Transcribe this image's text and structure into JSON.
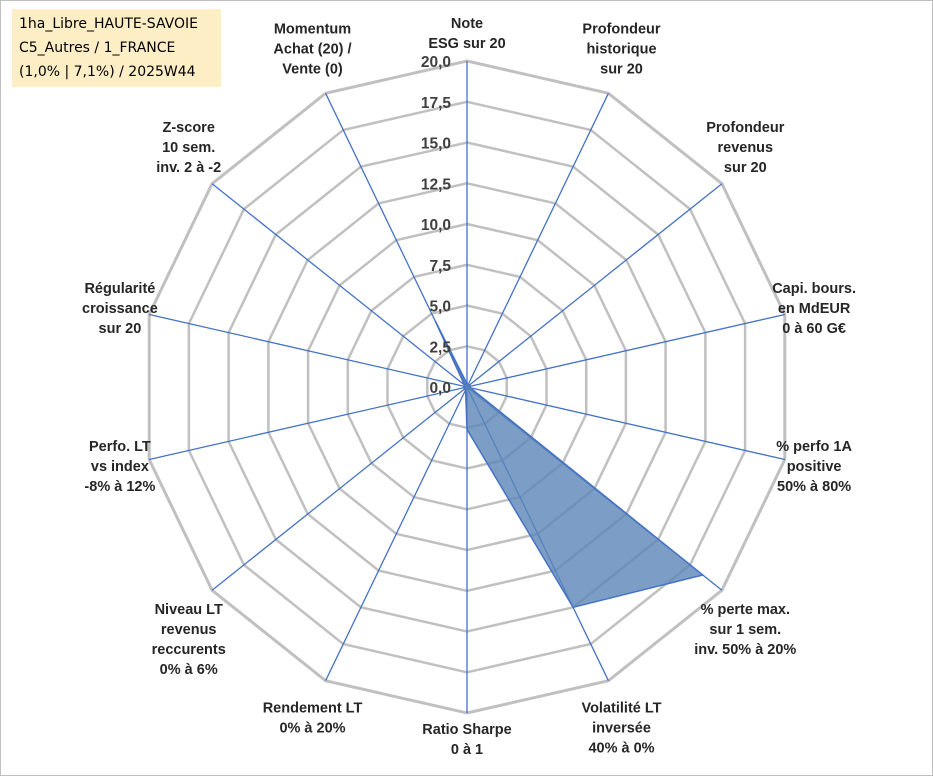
{
  "info_box": {
    "line1": "1ha_Libre_HAUTE-SAVOIE",
    "line2": "C5_Autres / 1_FRANCE",
    "line3": "(1,0% | 7,1%) / 2025W44"
  },
  "colors": {
    "fill": "#5b86b8",
    "stroke": "#4472c4",
    "grid": "#c0c0c0",
    "spoke": "#4472c4",
    "info_bg": "#fdeec6"
  },
  "chart_data": {
    "type": "radar",
    "range": [
      0,
      20
    ],
    "step": 2.5,
    "tick_labels": [
      "0,0",
      "2,5",
      "5,0",
      "7,5",
      "10,0",
      "12,5",
      "15,0",
      "17,5",
      "20,0"
    ],
    "axes": [
      [
        "Note",
        "ESG sur 20"
      ],
      [
        "Profondeur",
        "historique",
        "sur 20"
      ],
      [
        "Profondeur",
        "revenus",
        "sur 20"
      ],
      [
        "Capi. bours.",
        "en MdEUR",
        "0 à 60 G€"
      ],
      [
        "% perfo 1A",
        "positive",
        "50% à 80%"
      ],
      [
        "% perte max.",
        "sur 1 sem.",
        "inv. 50% à 20%"
      ],
      [
        "Volatilité LT",
        "inversée",
        "40% à 0%"
      ],
      [
        "Ratio Sharpe",
        "0 à 1"
      ],
      [
        "Rendement LT",
        "0% à 20%"
      ],
      [
        "Niveau LT",
        "revenus",
        "reccurents",
        "0% à 6%"
      ],
      [
        "Perfo. LT",
        "vs index",
        "-8% à 12%"
      ],
      [
        "Régularité",
        "croissance",
        "sur 20"
      ],
      [
        "Z-score",
        "10 sem.",
        "inv. 2 à -2"
      ],
      [
        "Momentum",
        "Achat (20) /",
        "Vente (0)"
      ]
    ],
    "values": [
      0.2,
      0.2,
      0.2,
      0.2,
      0.2,
      18.5,
      15.0,
      2.6,
      0.2,
      0.2,
      0.2,
      0.2,
      0.2,
      4.5
    ]
  }
}
